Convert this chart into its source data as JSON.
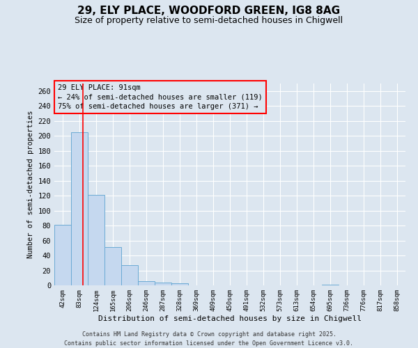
{
  "title_line1": "29, ELY PLACE, WOODFORD GREEN, IG8 8AG",
  "title_line2": "Size of property relative to semi-detached houses in Chigwell",
  "xlabel": "Distribution of semi-detached houses by size in Chigwell",
  "ylabel": "Number of semi-detached properties",
  "categories": [
    "42sqm",
    "83sqm",
    "124sqm",
    "165sqm",
    "206sqm",
    "246sqm",
    "287sqm",
    "328sqm",
    "369sqm",
    "409sqm",
    "450sqm",
    "491sqm",
    "532sqm",
    "573sqm",
    "613sqm",
    "654sqm",
    "695sqm",
    "736sqm",
    "776sqm",
    "817sqm",
    "858sqm"
  ],
  "values": [
    81,
    205,
    121,
    51,
    27,
    6,
    4,
    3,
    0,
    0,
    0,
    0,
    0,
    0,
    0,
    0,
    1,
    0,
    0,
    0,
    0
  ],
  "bar_color": "#c5d8ef",
  "bar_edge_color": "#6aaad4",
  "ylim": [
    0,
    270
  ],
  "yticks": [
    0,
    20,
    40,
    60,
    80,
    100,
    120,
    140,
    160,
    180,
    200,
    220,
    240,
    260
  ],
  "red_line_x": 1.2,
  "annotation_title": "29 ELY PLACE: 91sqm",
  "annotation_line1": "← 24% of semi-detached houses are smaller (119)",
  "annotation_line2": "75% of semi-detached houses are larger (371) →",
  "footer_line1": "Contains HM Land Registry data © Crown copyright and database right 2025.",
  "footer_line2": "Contains public sector information licensed under the Open Government Licence v3.0.",
  "bg_color": "#dce6f0",
  "grid_color": "#ffffff"
}
